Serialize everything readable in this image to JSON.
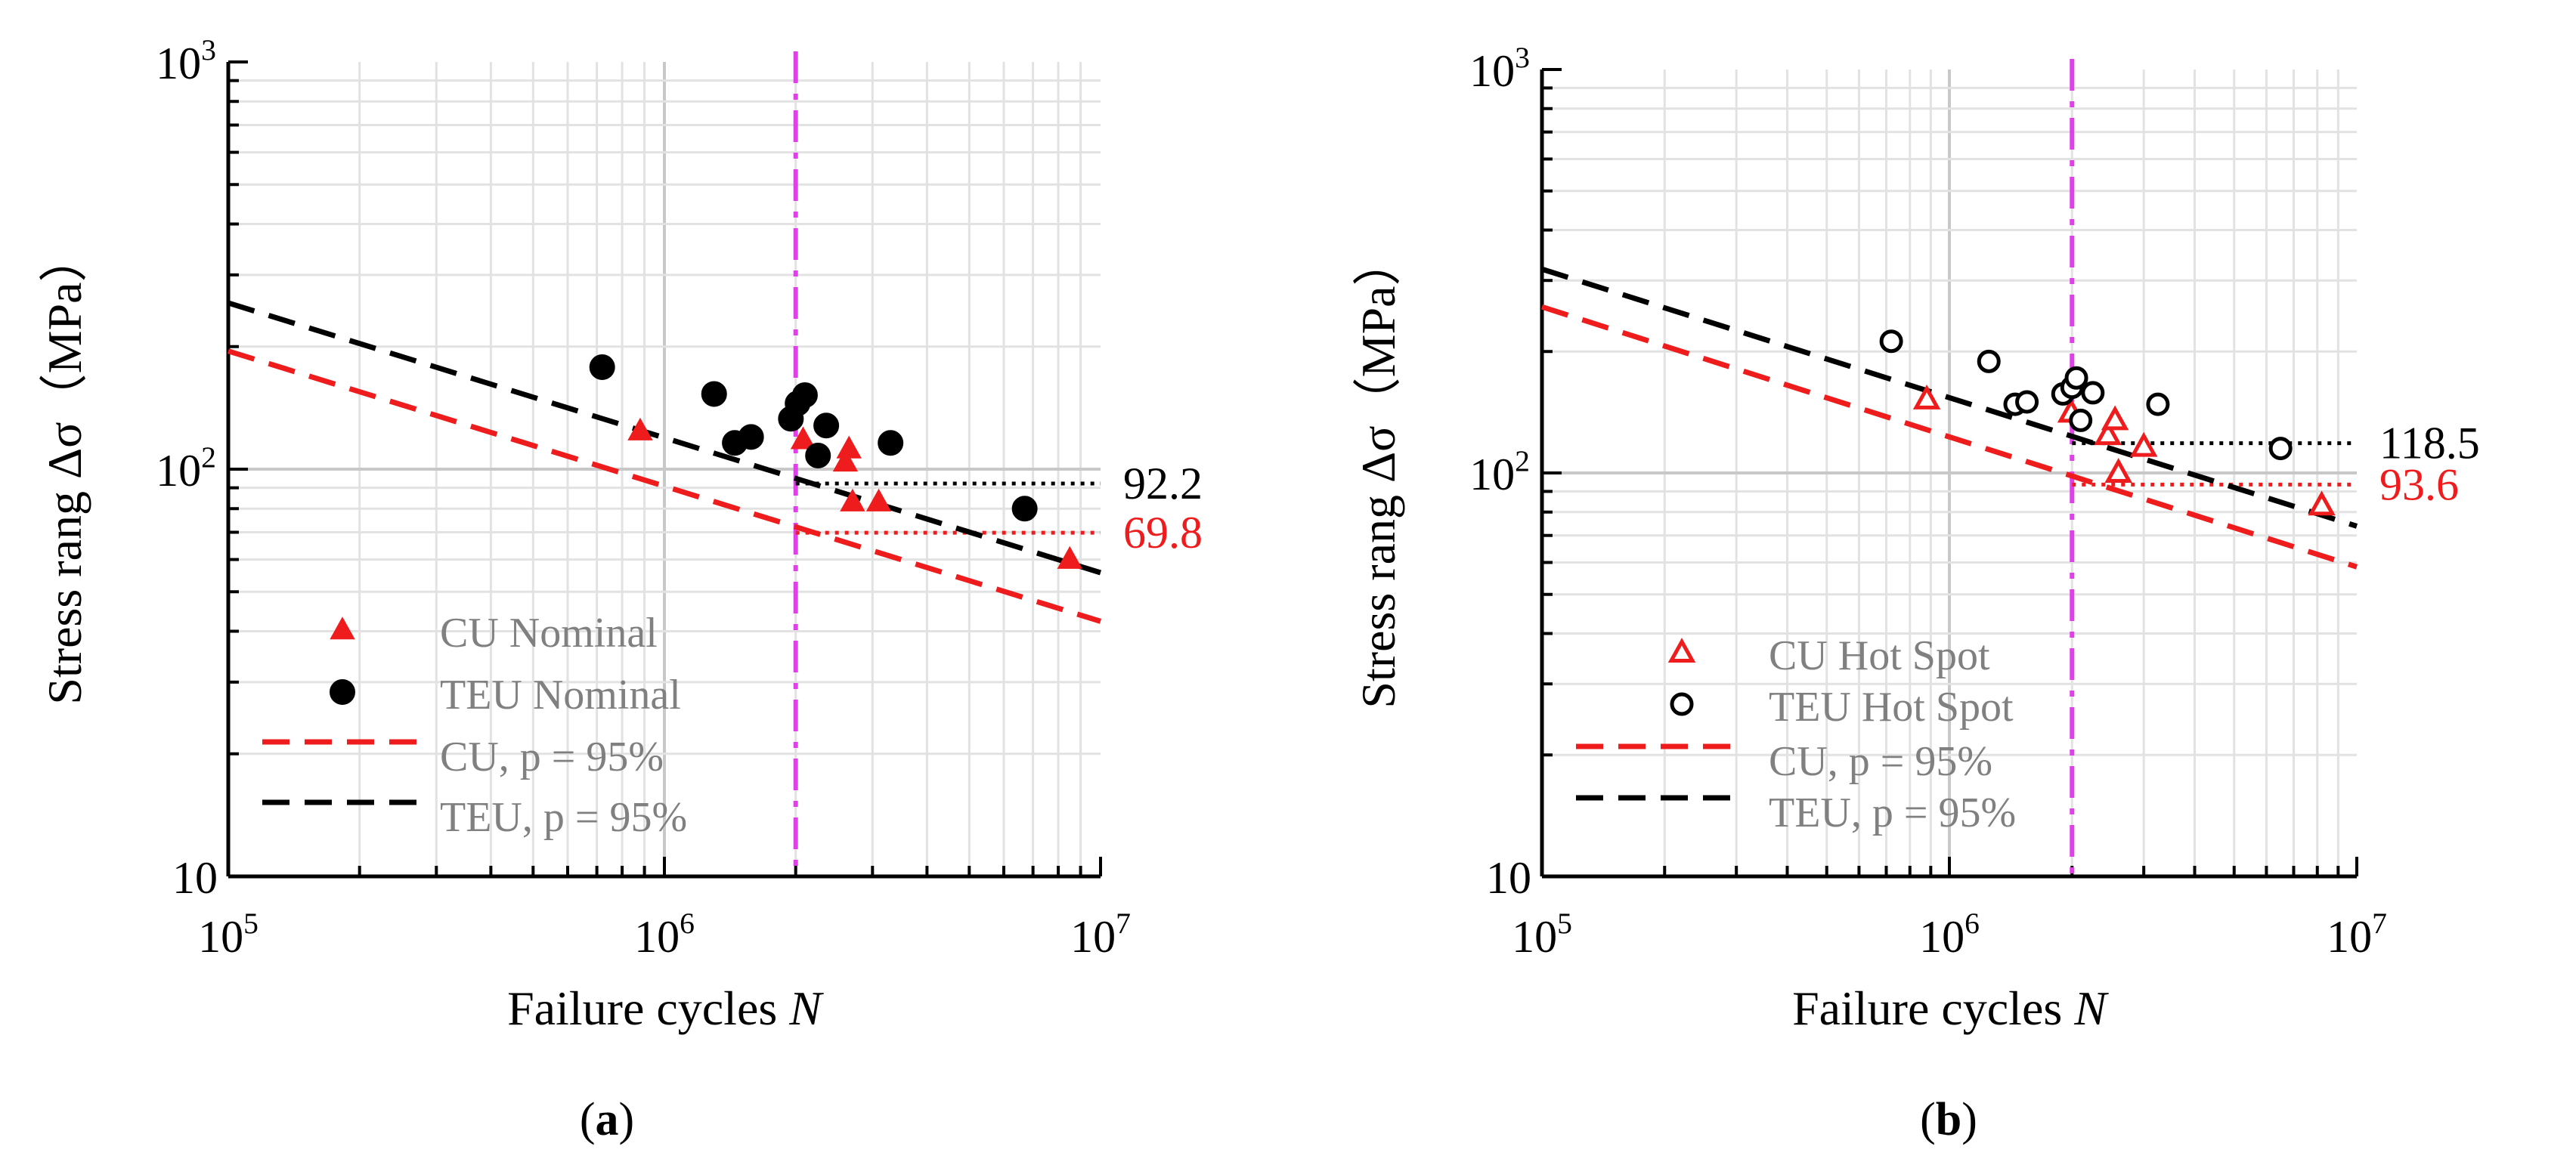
{
  "chart_data": [
    {
      "panel_label": "(a)",
      "type": "scatter",
      "xlabel": "Failure cycles N",
      "ylabel": "Stress rang Δσ（MPa）",
      "xscale": "log",
      "yscale": "log",
      "xlim": [
        100000,
        10000000
      ],
      "ylim": [
        10,
        1000
      ],
      "xticks": [
        {
          "v": 100000,
          "base": "10",
          "exp": "5"
        },
        {
          "v": 1000000,
          "base": "10",
          "exp": "6"
        },
        {
          "v": 10000000,
          "base": "10",
          "exp": "7"
        }
      ],
      "yticks": [
        {
          "v": 10,
          "text": "10"
        },
        {
          "v": 100,
          "base": "10",
          "exp": "2"
        },
        {
          "v": 1000,
          "base": "10",
          "exp": "3"
        }
      ],
      "grid": true,
      "vline_x": 2000000,
      "series": [
        {
          "name": "CU Nominal",
          "kind": "points",
          "marker": "triangle",
          "filled": true,
          "color": "#ee1c1c",
          "points": [
            [
              880000,
              124
            ],
            [
              2080000,
              118
            ],
            [
              2600000,
              104
            ],
            [
              2650000,
              112
            ],
            [
              2700000,
              83
            ],
            [
              3100000,
              83
            ],
            [
              8500000,
              60
            ]
          ]
        },
        {
          "name": "TEU Nominal",
          "kind": "points",
          "marker": "circle",
          "filled": true,
          "color": "#000000",
          "points": [
            [
              720000,
              178
            ],
            [
              1300000,
              153
            ],
            [
              1450000,
              116
            ],
            [
              1580000,
              120
            ],
            [
              1950000,
              133
            ],
            [
              2020000,
              145
            ],
            [
              2100000,
              152
            ],
            [
              2250000,
              108
            ],
            [
              2350000,
              128
            ],
            [
              3300000,
              116
            ],
            [
              6700000,
              80
            ]
          ]
        },
        {
          "name": "CU, p = 95%",
          "kind": "line",
          "dash": "dashed",
          "color": "#ee1c1c",
          "points": [
            [
              100000,
              195
            ],
            [
              10000000,
              42.3
            ]
          ]
        },
        {
          "name": "TEU, p = 95%",
          "kind": "line",
          "dash": "dashed",
          "color": "#000000",
          "points": [
            [
              100000,
              256
            ],
            [
              10000000,
              55.7
            ]
          ]
        }
      ],
      "plateaus": [
        {
          "value": 92.2,
          "label": "92.2",
          "color": "#000000"
        },
        {
          "value": 69.8,
          "label": "69.8",
          "color": "#ee1c1c"
        }
      ],
      "legend": {
        "position": "bottom-left",
        "text_color": "#808080"
      }
    },
    {
      "panel_label": "(b)",
      "type": "scatter",
      "xlabel": "Failure cycles N",
      "ylabel": "Stress rang Δσ（MPa）",
      "xscale": "log",
      "yscale": "log",
      "xlim": [
        100000,
        10000000
      ],
      "ylim": [
        10,
        1000
      ],
      "xticks": [
        {
          "v": 100000,
          "base": "10",
          "exp": "5"
        },
        {
          "v": 1000000,
          "base": "10",
          "exp": "6"
        },
        {
          "v": 10000000,
          "base": "10",
          "exp": "7"
        }
      ],
      "yticks": [
        {
          "v": 10,
          "text": "10"
        },
        {
          "v": 100,
          "base": "10",
          "exp": "2"
        },
        {
          "v": 1000,
          "base": "10",
          "exp": "3"
        }
      ],
      "grid": true,
      "vline_x": 2000000,
      "series": [
        {
          "name": "CU Hot Spot",
          "kind": "points",
          "marker": "triangle",
          "filled": false,
          "color": "#ee1c1c",
          "points": [
            [
              880000,
              152
            ],
            [
              1990000,
              141
            ],
            [
              2450000,
              124
            ],
            [
              2550000,
              135
            ],
            [
              2600000,
              100
            ],
            [
              3000000,
              116
            ],
            [
              8200000,
              83
            ]
          ]
        },
        {
          "name": "TEU Hot Spot",
          "kind": "points",
          "marker": "circle",
          "filled": false,
          "color": "#000000",
          "points": [
            [
              720000,
              212
            ],
            [
              1250000,
              189
            ],
            [
              1450000,
              148
            ],
            [
              1550000,
              150
            ],
            [
              1900000,
              157
            ],
            [
              2000000,
              163
            ],
            [
              2050000,
              172
            ],
            [
              2100000,
              135
            ],
            [
              2250000,
              158
            ],
            [
              3250000,
              148
            ],
            [
              6500000,
              115
            ]
          ]
        },
        {
          "name": "CU, p = 95%",
          "kind": "line",
          "dash": "dashed",
          "color": "#ee1c1c",
          "points": [
            [
              100000,
              258
            ],
            [
              10000000,
              58.5
            ]
          ]
        },
        {
          "name": "TEU, p = 95%",
          "kind": "line",
          "dash": "dashed",
          "color": "#000000",
          "points": [
            [
              100000,
              320
            ],
            [
              10000000,
              73.8
            ]
          ]
        }
      ],
      "plateaus": [
        {
          "value": 118.5,
          "label": "118.5",
          "color": "#000000"
        },
        {
          "value": 93.6,
          "label": "93.6",
          "color": "#ee1c1c"
        }
      ],
      "legend": {
        "position": "bottom-left",
        "text_color": "#808080"
      }
    }
  ],
  "colors": {
    "vline": "#e040e8",
    "grid_major": "#c8c8c8",
    "grid_minor": "#e2e2e2",
    "axis": "#000000"
  }
}
